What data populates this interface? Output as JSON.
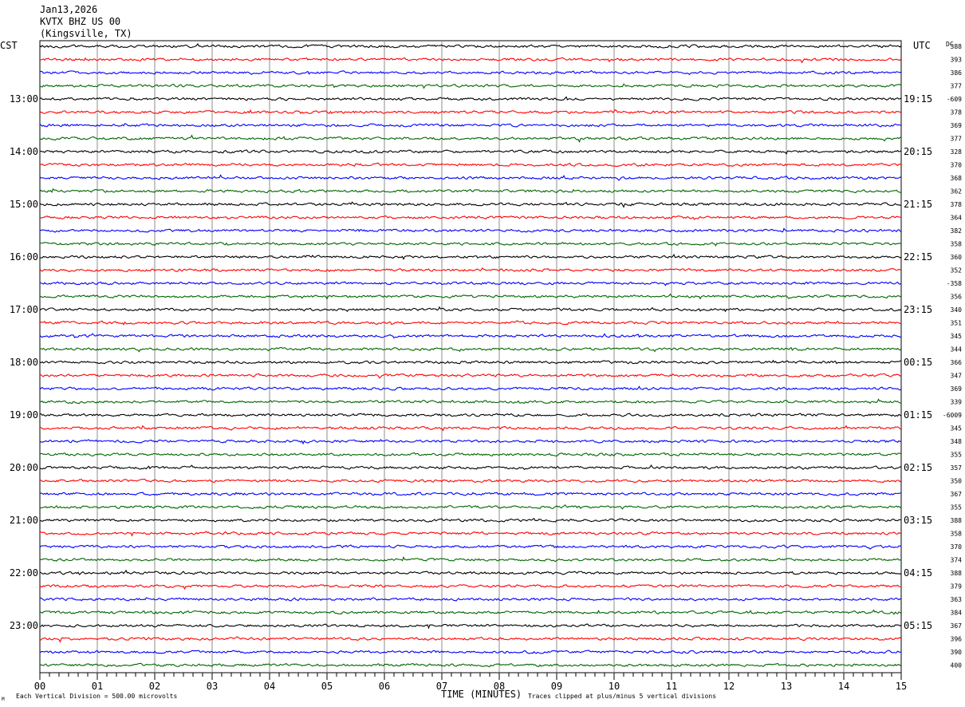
{
  "header": {
    "date": "Jan13,2026",
    "station": "KVTX BHZ US 00",
    "location": "(Kingsville, TX)"
  },
  "labels": {
    "left_tz": "CST",
    "right_tz": "UTC",
    "dc": "DC",
    "x_axis": "TIME (MINUTES)",
    "scale_note": "Each Vertical Division =  500.00 microvolts",
    "clip_note": "Traces clipped at plus/minus 5 vertical divisions",
    "corner_mark": "M"
  },
  "chart_data": {
    "type": "line",
    "title": "",
    "xlabel": "TIME (MINUTES)",
    "xlim": [
      0,
      15
    ],
    "x_ticks": [
      "00",
      "01",
      "02",
      "03",
      "04",
      "05",
      "06",
      "07",
      "08",
      "09",
      "10",
      "11",
      "12",
      "13",
      "14",
      "15"
    ],
    "left_hour_labels": [
      "13:00",
      "14:00",
      "15:00",
      "16:00",
      "17:00",
      "18:00",
      "19:00",
      "20:00",
      "21:00",
      "22:00",
      "23:00"
    ],
    "right_hour_labels": [
      "19:15",
      "20:15",
      "21:15",
      "22:15",
      "23:15",
      "00:15",
      "01:15",
      "02:15",
      "03:15",
      "04:15",
      "05:15"
    ],
    "trace_colors": [
      "#000000",
      "#ff0000",
      "#0000ff",
      "#006600"
    ],
    "trace_count": 48,
    "dc_offsets": [
      "388",
      "393",
      "386",
      "377",
      "-609",
      "378",
      "369",
      "377",
      "328",
      "370",
      "368",
      "362",
      "378",
      "364",
      "382",
      "358",
      "360",
      "352",
      "-358",
      "356",
      "340",
      "351",
      "345",
      "344",
      "366",
      "347",
      "369",
      "339",
      "-6009",
      "345",
      "348",
      "355",
      "357",
      "350",
      "367",
      "355",
      "388",
      "358",
      "370",
      "374",
      "388",
      "379",
      "363",
      "384",
      "367",
      "396",
      "390",
      "400"
    ]
  }
}
